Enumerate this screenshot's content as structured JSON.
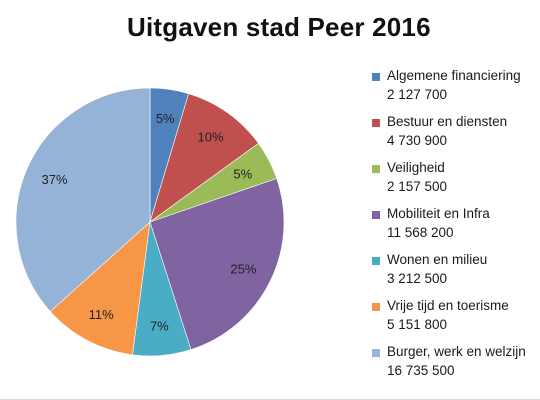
{
  "chart_data": {
    "type": "pie",
    "title": "Uitgaven stad Peer 2016",
    "slices": [
      {
        "name": "Algemene financiering",
        "value": 2127700,
        "value_label": "2 127 700",
        "percent_label": "5%",
        "color": "#4F81BD"
      },
      {
        "name": "Bestuur en diensten",
        "value": 4730900,
        "value_label": "4 730 900",
        "percent_label": "10%",
        "color": "#C0504D"
      },
      {
        "name": "Veiligheid",
        "value": 2157500,
        "value_label": "2 157 500",
        "percent_label": "5%",
        "color": "#9BBB59"
      },
      {
        "name": "Mobiliteit en Infra",
        "value": 11568200,
        "value_label": "11 568 200",
        "percent_label": "25%",
        "color": "#8064A2"
      },
      {
        "name": "Wonen en milieu",
        "value": 3212500,
        "value_label": "3 212 500",
        "percent_label": "7%",
        "color": "#4BACC6"
      },
      {
        "name": "Vrije tijd en toerisme",
        "value": 5151800,
        "value_label": "5 151 800",
        "percent_label": "11%",
        "color": "#F79646"
      },
      {
        "name": "Burger, werk en welzijn",
        "value": 16735500,
        "value_label": "16 735 500",
        "percent_label": "37%",
        "color": "#95B3D7"
      }
    ],
    "start_angle": "12 o'clock",
    "direction": "clockwise",
    "legend_position": "right"
  }
}
